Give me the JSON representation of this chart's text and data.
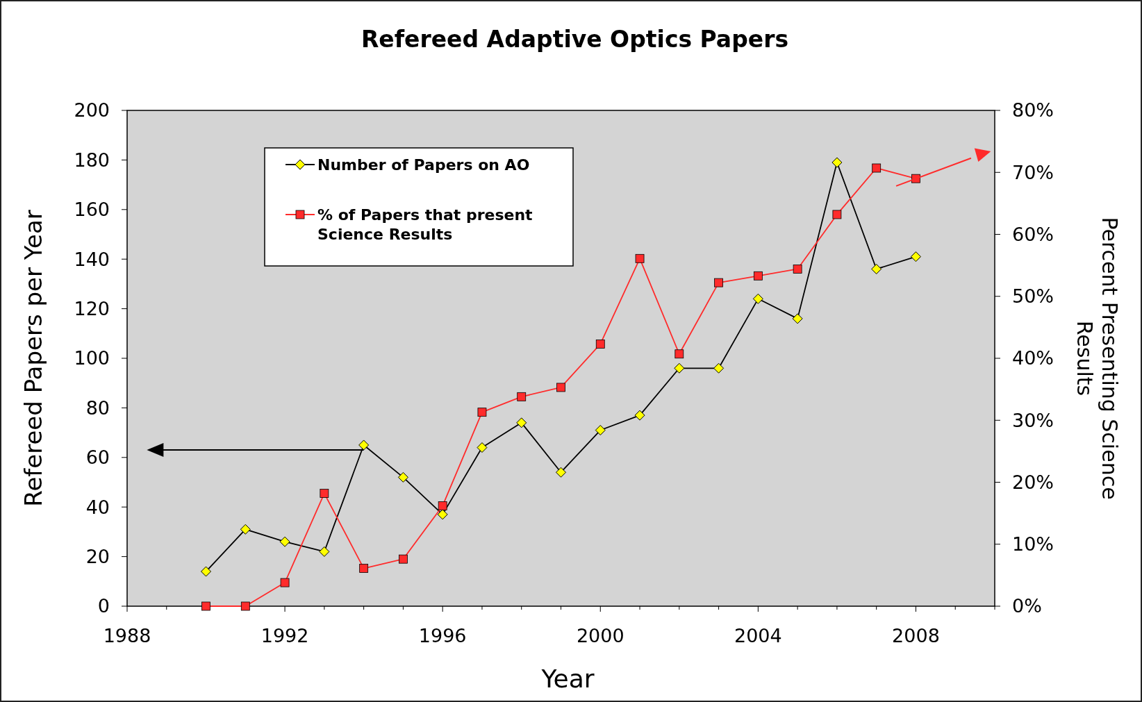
{
  "chart_data": {
    "type": "line",
    "title": "Refereed Adaptive Optics Papers",
    "xlabel": "Year",
    "ylabel": "Refereed Papers per Year",
    "y2label": "Percent Presenting Science Results",
    "x": [
      1990,
      1991,
      1992,
      1993,
      1994,
      1995,
      1996,
      1997,
      1998,
      1999,
      2000,
      2001,
      2002,
      2003,
      2004,
      2005,
      2006,
      2007,
      2008
    ],
    "series": [
      {
        "name": "Number of Papers on AO",
        "color": "#000000",
        "marker": "diamond",
        "values": [
          14,
          31,
          26,
          22,
          65,
          52,
          37,
          64,
          74,
          54,
          71,
          77,
          96,
          96,
          124,
          116,
          179,
          136,
          141
        ]
      },
      {
        "name": "% of Papers that present Science Results",
        "color": "#ff2b2b",
        "marker": "square",
        "axis": "y2",
        "values": [
          0,
          0,
          3.8,
          18.2,
          6.1,
          7.6,
          16.2,
          31.3,
          33.8,
          35.3,
          42.3,
          56.1,
          40.7,
          52.2,
          53.3,
          54.4,
          63.2,
          70.7,
          69.0
        ]
      }
    ],
    "xlim": [
      1988,
      2010
    ],
    "xticks": [
      1988,
      {
        "value": 1989,
        "label": null
      },
      {
        "value": 1990,
        "label": null
      },
      {
        "value": 1991,
        "label": null
      },
      1992,
      {
        "value": 1993,
        "label": null
      },
      {
        "value": 1994,
        "label": null
      },
      {
        "value": 1995,
        "label": null
      },
      1996,
      {
        "value": 1997,
        "label": null
      },
      {
        "value": 1998,
        "label": null
      },
      {
        "value": 1999,
        "label": null
      },
      2000,
      {
        "value": 2001,
        "label": null
      },
      {
        "value": 2002,
        "label": null
      },
      {
        "value": 2003,
        "label": null
      },
      2004,
      {
        "value": 2005,
        "label": null
      },
      {
        "value": 2006,
        "label": null
      },
      {
        "value": 2007,
        "label": null
      },
      2008,
      {
        "value": 2009,
        "label": null
      },
      {
        "value": 2010,
        "label": null
      }
    ],
    "ylim": [
      0,
      200
    ],
    "yticks": [
      0,
      20,
      40,
      60,
      80,
      100,
      120,
      140,
      160,
      180,
      200
    ],
    "y2lim": [
      0,
      80
    ],
    "y2ticks": [
      {
        "value": 0,
        "label": "0%"
      },
      {
        "value": 10,
        "label": "10%"
      },
      {
        "value": 20,
        "label": "20%"
      },
      {
        "value": 30,
        "label": "30%"
      },
      {
        "value": 40,
        "label": "40%"
      },
      {
        "value": 50,
        "label": "50%"
      },
      {
        "value": 60,
        "label": "60%"
      },
      {
        "value": 70,
        "label": "70%"
      },
      {
        "value": 80,
        "label": "80%"
      }
    ],
    "legend": "top left",
    "grid": false,
    "line_style": "solid"
  }
}
